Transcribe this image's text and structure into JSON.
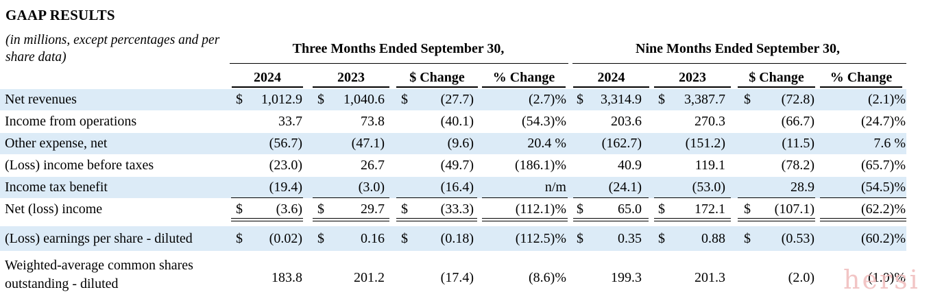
{
  "title": "GAAP RESULTS",
  "subtitle": "(in millions, except percentages and per share data)",
  "periods": [
    "Three Months Ended September 30,",
    "Nine Months Ended September 30,"
  ],
  "columns": [
    "2024",
    "2023",
    "$ Change",
    "% Change",
    "2024",
    "2023",
    "$ Change",
    "% Change"
  ],
  "rows": [
    {
      "label": "Net revenues",
      "dollar": [
        true,
        true,
        true,
        false,
        true,
        true,
        true,
        false
      ],
      "values": [
        "1,012.9",
        "1,040.6",
        "(27.7)",
        "(2.7)%",
        "3,314.9",
        "3,387.7",
        "(72.8)",
        "(2.1)%"
      ]
    },
    {
      "label": "Income from operations",
      "dollar": [
        false,
        false,
        false,
        false,
        false,
        false,
        false,
        false
      ],
      "values": [
        "33.7",
        "73.8",
        "(40.1)",
        "(54.3)%",
        "203.6",
        "270.3",
        "(66.7)",
        "(24.7)%"
      ]
    },
    {
      "label": "Other expense, net",
      "dollar": [
        false,
        false,
        false,
        false,
        false,
        false,
        false,
        false
      ],
      "values": [
        "(56.7)",
        "(47.1)",
        "(9.6)",
        "20.4 %",
        "(162.7)",
        "(151.2)",
        "(11.5)",
        "7.6 %"
      ]
    },
    {
      "label": "(Loss) income before taxes",
      "dollar": [
        false,
        false,
        false,
        false,
        false,
        false,
        false,
        false
      ],
      "values": [
        "(23.0)",
        "26.7",
        "(49.7)",
        "(186.1)%",
        "40.9",
        "119.1",
        "(78.2)",
        "(65.7)%"
      ]
    },
    {
      "label": "Income tax benefit",
      "dollar": [
        false,
        false,
        false,
        false,
        false,
        false,
        false,
        false
      ],
      "values": [
        "(19.4)",
        "(3.0)",
        "(16.4)",
        "n/m",
        "(24.1)",
        "(53.0)",
        "28.9",
        "(54.5)%"
      ]
    },
    {
      "label": "Net (loss) income",
      "dollar": [
        true,
        true,
        true,
        false,
        true,
        true,
        true,
        false
      ],
      "values": [
        "(3.6)",
        "29.7",
        "(33.3)",
        "(112.1)%",
        "65.0",
        "172.1",
        "(107.1)",
        "(62.2)%"
      ]
    },
    {
      "label": "(Loss) earnings per share - diluted",
      "dollar": [
        true,
        true,
        true,
        false,
        true,
        true,
        true,
        false
      ],
      "values": [
        "(0.02)",
        "0.16",
        "(0.18)",
        "(112.5)%",
        "0.35",
        "0.88",
        "(0.53)",
        "(60.2)%"
      ]
    },
    {
      "label": "Weighted-average common shares outstanding - diluted",
      "dollar": [
        false,
        false,
        false,
        false,
        false,
        false,
        false,
        false
      ],
      "values": [
        "183.8",
        "201.2",
        "(17.4)",
        "(8.6)%",
        "199.3",
        "201.3",
        "(2.0)",
        "(1.0)%"
      ]
    }
  ],
  "dollar_sign": "$",
  "watermark": "hersi"
}
